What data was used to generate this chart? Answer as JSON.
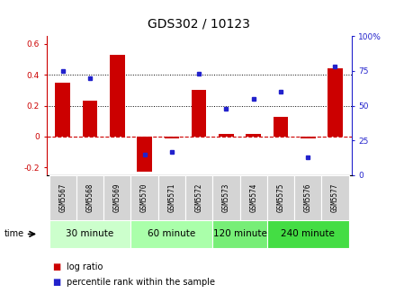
{
  "title": "GDS302 / 10123",
  "categories": [
    "GSM5567",
    "GSM5568",
    "GSM5569",
    "GSM5570",
    "GSM5571",
    "GSM5572",
    "GSM5573",
    "GSM5574",
    "GSM5575",
    "GSM5576",
    "GSM5577"
  ],
  "log_ratio": [
    0.35,
    0.23,
    0.53,
    -0.23,
    -0.01,
    0.3,
    0.02,
    0.02,
    0.13,
    -0.01,
    0.44
  ],
  "percentile": [
    75,
    70,
    null,
    15,
    17,
    73,
    48,
    55,
    60,
    13,
    78
  ],
  "bar_color": "#cc0000",
  "dot_color": "#2222cc",
  "ylim_left": [
    -0.25,
    0.65
  ],
  "ylim_right": [
    0,
    100
  ],
  "yticks_left": [
    -0.2,
    0.0,
    0.2,
    0.4,
    0.6
  ],
  "ytick_labels_left": [
    "-0.2",
    "0",
    "0.2",
    "0.4",
    "0.6"
  ],
  "yticks_right": [
    0,
    25,
    50,
    75,
    100
  ],
  "ytick_labels_right": [
    "0",
    "25",
    "50",
    "75",
    "100%"
  ],
  "groups": [
    {
      "label": "30 minute",
      "start": 0,
      "end": 3,
      "color": "#ccffcc"
    },
    {
      "label": "60 minute",
      "start": 3,
      "end": 6,
      "color": "#aaffaa"
    },
    {
      "label": "120 minute",
      "start": 6,
      "end": 8,
      "color": "#77ee77"
    },
    {
      "label": "240 minute",
      "start": 8,
      "end": 11,
      "color": "#44dd44"
    }
  ],
  "legend_bar_label": "log ratio",
  "legend_dot_label": "percentile rank within the sample",
  "title_fontsize": 10,
  "axis_fontsize": 6.5,
  "cat_fontsize": 5.5,
  "group_fontsize": 7.5,
  "legend_fontsize": 7
}
